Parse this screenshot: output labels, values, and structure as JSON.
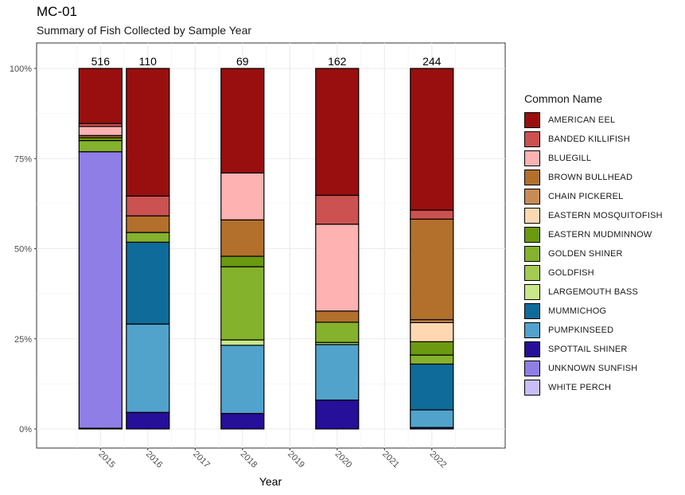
{
  "chart_data": {
    "type": "bar",
    "stacked": true,
    "normalized": true,
    "title": "MC-01",
    "subtitle": "Summary of Fish Collected by Sample Year",
    "xlabel": "Year",
    "ylabel": "",
    "ylim": [
      0,
      1
    ],
    "grid": true,
    "legend_position": "right",
    "legend_title": "Common Name",
    "x_ticks": [
      "2015",
      "2016",
      "2017",
      "2018",
      "2019",
      "2020",
      "2021",
      "2022"
    ],
    "y_ticks": [
      "0%",
      "25%",
      "50%",
      "75%",
      "100%"
    ],
    "species": [
      {
        "name": "AMERICAN EEL",
        "color": "#990F0F"
      },
      {
        "name": "BANDED KILLIFISH",
        "color": "#CC5151"
      },
      {
        "name": "BLUEGILL",
        "color": "#FFB2B2"
      },
      {
        "name": "BROWN BULLHEAD",
        "color": "#B2702C"
      },
      {
        "name": "CHAIN PICKEREL",
        "color": "#C98B55"
      },
      {
        "name": "EASTERN MOSQUITOFISH",
        "color": "#FFD8B2"
      },
      {
        "name": "EASTERN MUDMINNOW",
        "color": "#6B990F"
      },
      {
        "name": "GOLDEN SHINER",
        "color": "#85B22C"
      },
      {
        "name": "GOLDFISH",
        "color": "#A3CC51"
      },
      {
        "name": "LARGEMOUTH BASS",
        "color": "#C8E88A"
      },
      {
        "name": "MUMMICHOG",
        "color": "#0F6B99"
      },
      {
        "name": "PUMPKINSEED",
        "color": "#51A3CC"
      },
      {
        "name": "SPOTTAIL SHINER",
        "color": "#260F99"
      },
      {
        "name": "UNKNOWN SUNFISH",
        "color": "#8F7EE6"
      },
      {
        "name": "WHITE PERCH",
        "color": "#C8BDF7"
      }
    ],
    "bars": [
      {
        "x": "2015",
        "position": 2015,
        "total": "516",
        "segments": [
          {
            "species": "WHITE PERCH",
            "value": 0.002
          },
          {
            "species": "UNKNOWN SUNFISH",
            "value": 0.767
          },
          {
            "species": "GOLDEN SHINER",
            "value": 0.031
          },
          {
            "species": "EASTERN MUDMINNOW",
            "value": 0.008
          },
          {
            "species": "BROWN BULLHEAD",
            "value": 0.006
          },
          {
            "species": "BLUEGILL",
            "value": 0.025
          },
          {
            "species": "BANDED KILLIFISH",
            "value": 0.008
          },
          {
            "species": "AMERICAN EEL",
            "value": 0.153
          }
        ]
      },
      {
        "x": "2016",
        "position": 2016,
        "total": "110",
        "segments": [
          {
            "species": "SPOTTAIL SHINER",
            "value": 0.046
          },
          {
            "species": "PUMPKINSEED",
            "value": 0.245
          },
          {
            "species": "MUMMICHOG",
            "value": 0.227
          },
          {
            "species": "GOLDEN SHINER",
            "value": 0.027
          },
          {
            "species": "BROWN BULLHEAD",
            "value": 0.046
          },
          {
            "species": "BANDED KILLIFISH",
            "value": 0.055
          },
          {
            "species": "AMERICAN EEL",
            "value": 0.354
          }
        ]
      },
      {
        "x": "2018",
        "position": 2018,
        "total": "69",
        "segments": [
          {
            "species": "SPOTTAIL SHINER",
            "value": 0.043
          },
          {
            "species": "PUMPKINSEED",
            "value": 0.189
          },
          {
            "species": "LARGEMOUTH BASS",
            "value": 0.015
          },
          {
            "species": "GOLDEN SHINER",
            "value": 0.203
          },
          {
            "species": "EASTERN MUDMINNOW",
            "value": 0.029
          },
          {
            "species": "BROWN BULLHEAD",
            "value": 0.101
          },
          {
            "species": "BLUEGILL",
            "value": 0.13
          },
          {
            "species": "AMERICAN EEL",
            "value": 0.29
          }
        ]
      },
      {
        "x": "2020",
        "position": 2020,
        "total": "162",
        "segments": [
          {
            "species": "SPOTTAIL SHINER",
            "value": 0.08
          },
          {
            "species": "PUMPKINSEED",
            "value": 0.154
          },
          {
            "species": "GOLDFISH",
            "value": 0.006
          },
          {
            "species": "GOLDEN SHINER",
            "value": 0.056
          },
          {
            "species": "BROWN BULLHEAD",
            "value": 0.031
          },
          {
            "species": "BLUEGILL",
            "value": 0.241
          },
          {
            "species": "BANDED KILLIFISH",
            "value": 0.08
          },
          {
            "species": "AMERICAN EEL",
            "value": 0.352
          }
        ]
      },
      {
        "x": "2022",
        "position": 2022,
        "total": "244",
        "segments": [
          {
            "species": "SPOTTAIL SHINER",
            "value": 0.004
          },
          {
            "species": "PUMPKINSEED",
            "value": 0.049
          },
          {
            "species": "MUMMICHOG",
            "value": 0.127
          },
          {
            "species": "GOLDEN SHINER",
            "value": 0.025
          },
          {
            "species": "EASTERN MUDMINNOW",
            "value": 0.037
          },
          {
            "species": "EASTERN MOSQUITOFISH",
            "value": 0.053
          },
          {
            "species": "CHAIN PICKEREL",
            "value": 0.008
          },
          {
            "species": "BROWN BULLHEAD",
            "value": 0.279
          },
          {
            "species": "BANDED KILLIFISH",
            "value": 0.025
          },
          {
            "species": "AMERICAN EEL",
            "value": 0.393
          }
        ]
      }
    ]
  }
}
